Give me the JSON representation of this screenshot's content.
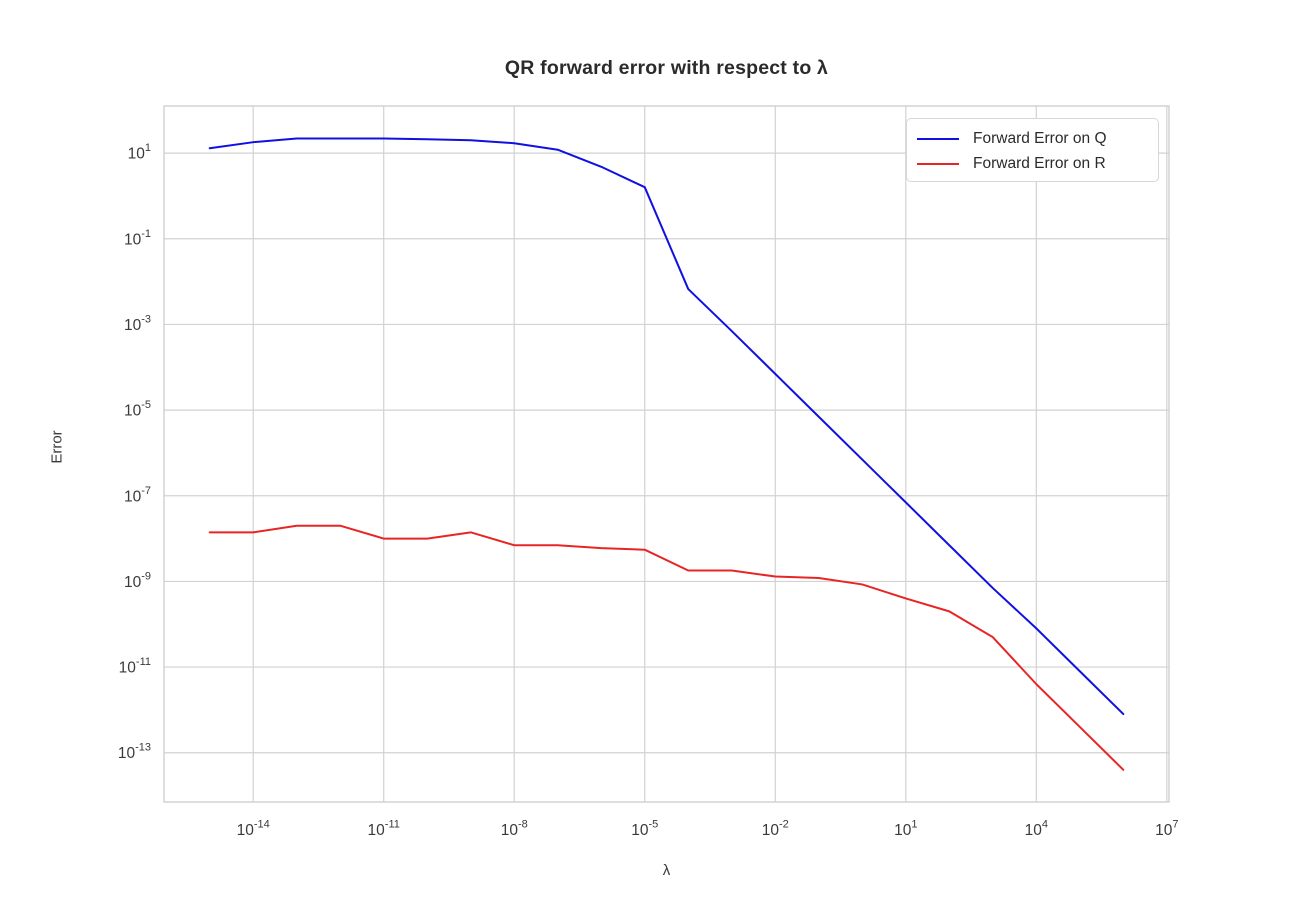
{
  "chart_data": {
    "type": "line",
    "title": "QR forward error with respect to λ",
    "xlabel": "λ",
    "ylabel": "Error",
    "x_scale": "log",
    "y_scale": "log",
    "grid": true,
    "legend_position": "upper right",
    "xlim_log": [
      -16.05,
      7.05
    ],
    "ylim_log": [
      -14.15,
      2.1
    ],
    "x_tick_exponents": [
      -14,
      -11,
      -8,
      -5,
      -2,
      1,
      4,
      7
    ],
    "y_tick_exponents": [
      1,
      -1,
      -3,
      -5,
      -7,
      -9,
      -11,
      -13
    ],
    "tick_label_base": "10",
    "x": [
      1e-15,
      1e-14,
      1e-13,
      1e-12,
      1e-11,
      1e-10,
      1e-09,
      1e-08,
      1e-07,
      1e-06,
      1e-05,
      0.0001,
      0.001,
      0.01,
      0.1,
      1,
      10,
      100,
      1000,
      10000,
      100000,
      1000000
    ],
    "series": [
      {
        "name": "Forward Error on Q",
        "color": "#1010e0",
        "values": [
          13,
          18,
          22,
          22,
          22,
          21,
          20,
          17,
          12,
          4.8,
          1.6,
          0.0067,
          0.0007,
          7e-05,
          7e-06,
          7e-07,
          7e-08,
          7e-09,
          7e-10,
          8e-11,
          8e-12,
          8e-13
        ]
      },
      {
        "name": "Forward Error on R",
        "color": "#e82525",
        "values": [
          1.4e-08,
          1.4e-08,
          2e-08,
          2e-08,
          1e-08,
          1e-08,
          1.4e-08,
          7e-09,
          7e-09,
          6e-09,
          5.5e-09,
          1.8e-09,
          1.8e-09,
          1.3e-09,
          1.2e-09,
          8.5e-10,
          4e-10,
          2e-10,
          5e-11,
          4e-12,
          4e-13,
          4e-14
        ]
      }
    ],
    "colors": {
      "grid": "#d2d2d2",
      "spine": "#cdcdcd",
      "tick_text": "#3a3a3a",
      "title_text": "#2b2b2b",
      "background": "#ffffff"
    }
  }
}
